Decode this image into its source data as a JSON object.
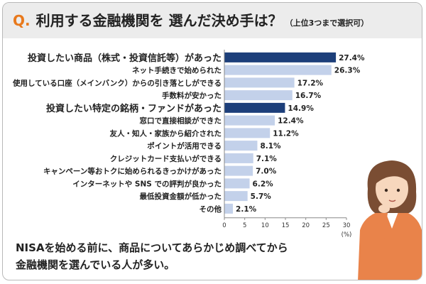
{
  "header": {
    "q_mark": "Q.",
    "title": "利用する金融機関を 選んだ決め手は？",
    "note": "（上位3つまで選択可）"
  },
  "chart_data": {
    "type": "bar",
    "orientation": "horizontal",
    "title": "利用する金融機関を 選んだ決め手は？",
    "xlabel": "(%)",
    "xlim": [
      0,
      30
    ],
    "xticks": [
      0,
      5,
      10,
      15,
      20,
      25,
      30
    ],
    "categories": [
      "投資したい商品（株式・投資信託等）があった",
      "ネット手続きで始められた",
      "使用している口座（メインバンク）からの引き落としができる",
      "手数料が安かった",
      "投資したい特定の銘柄・ファンドがあった",
      "窓口で直接相談ができた",
      "友人・知人・家族から紹介された",
      "ポイントが活用できる",
      "クレジットカード支払いができる",
      "キャンペーン等おトクに始められるきっかけがあった",
      "インターネットや SNS での評判が良かった",
      "最低投資金額が低かった",
      "その他"
    ],
    "values": [
      27.4,
      26.3,
      17.2,
      16.7,
      14.9,
      12.4,
      11.2,
      8.1,
      7.1,
      7.0,
      6.2,
      5.7,
      2.1
    ],
    "value_labels": [
      "27.4%",
      "26.3%",
      "17.2%",
      "16.7%",
      "14.9%",
      "12.4%",
      "11.2%",
      "8.1%",
      "7.1%",
      "7.0%",
      "6.2%",
      "5.7%",
      "2.1%"
    ],
    "highlighted": [
      true,
      false,
      false,
      false,
      true,
      false,
      false,
      false,
      false,
      false,
      false,
      false,
      false
    ],
    "colors": {
      "highlight": "#1d3f7a",
      "normal": "#c3d1ea",
      "axis": "#888888"
    },
    "grid": false,
    "legend": "none"
  },
  "summary": {
    "line1": "NISAを始める前に、商品についてあらかじめ調べてから",
    "line2": "金融機関を選んでいる人が多い。"
  },
  "colors": {
    "accent": "#e8791c",
    "header_bg": "#ececec",
    "border": "#b9b9b9"
  }
}
